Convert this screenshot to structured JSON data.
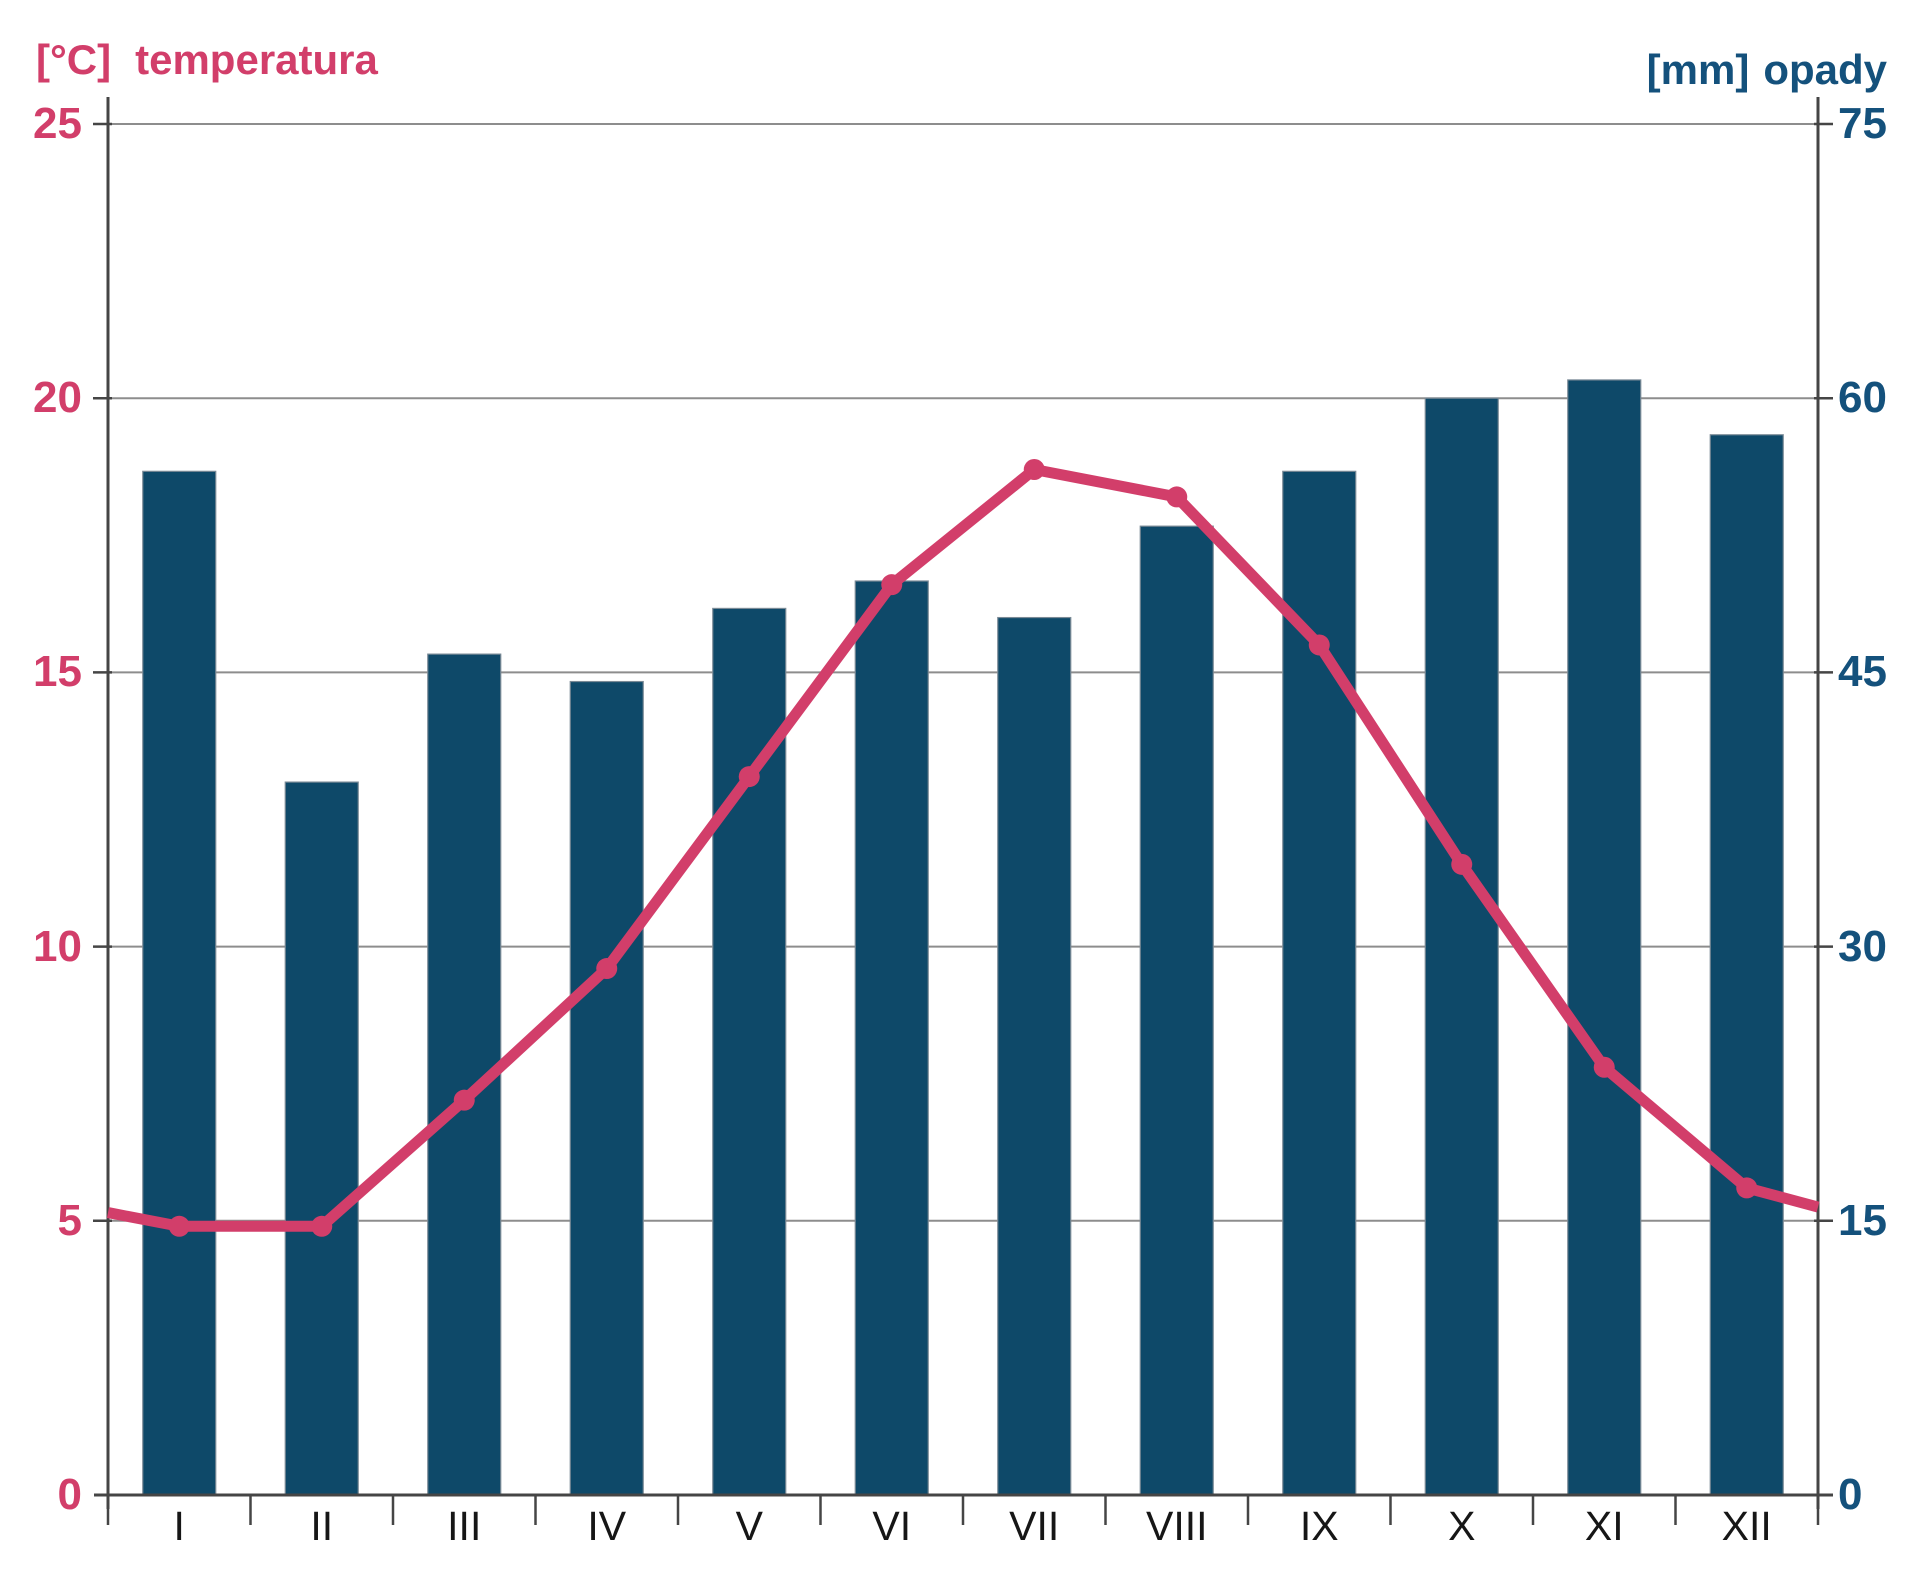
{
  "titles": {
    "left_unit": "[°C]",
    "left_word": "temperatura",
    "right_unit": "[mm]",
    "right_word": "opady"
  },
  "colors": {
    "temperature_pink": "#d23e6a",
    "precipitation_bar_blue": "#0e4969",
    "right_axis_text_blue": "#14517c",
    "gridline_gray": "#8d8d8d",
    "axis_dark_gray": "#454545",
    "month_label_black": "#161616"
  },
  "chart_data": {
    "type": "bar",
    "subtype": "climograph-dual-axis-bar-and-line",
    "title": "",
    "categories": [
      "I",
      "II",
      "III",
      "IV",
      "V",
      "VI",
      "VII",
      "VIII",
      "IX",
      "X",
      "XI",
      "XII"
    ],
    "series": [
      {
        "name": "opady",
        "type": "bar",
        "axis": "right",
        "unit": "mm",
        "color": "#0e4969",
        "values": [
          56,
          39,
          46,
          44.5,
          48.5,
          50,
          48,
          53,
          56,
          60,
          61,
          58
        ]
      },
      {
        "name": "temperatura",
        "type": "line",
        "axis": "left",
        "unit": "°C",
        "color": "#d23e6a",
        "values": [
          4.9,
          4.9,
          7.2,
          9.6,
          13.1,
          16.6,
          18.7,
          18.2,
          15.5,
          11.5,
          7.8,
          5.6
        ],
        "edge_values": {
          "start": 5.15,
          "end": 5.25
        }
      }
    ],
    "left_axis": {
      "title": "[°C] temperatura",
      "min": 0,
      "max": 25,
      "ticks": [
        0,
        5,
        10,
        15,
        20,
        25
      ]
    },
    "right_axis": {
      "title": "[mm] opady",
      "min": 0,
      "max": 75,
      "ticks": [
        0,
        15,
        30,
        45,
        60,
        75
      ]
    },
    "x_axis": {
      "tick_marks": "month boundaries",
      "labels": "month centers"
    },
    "grid": "horizontal-on",
    "legend": "none"
  }
}
